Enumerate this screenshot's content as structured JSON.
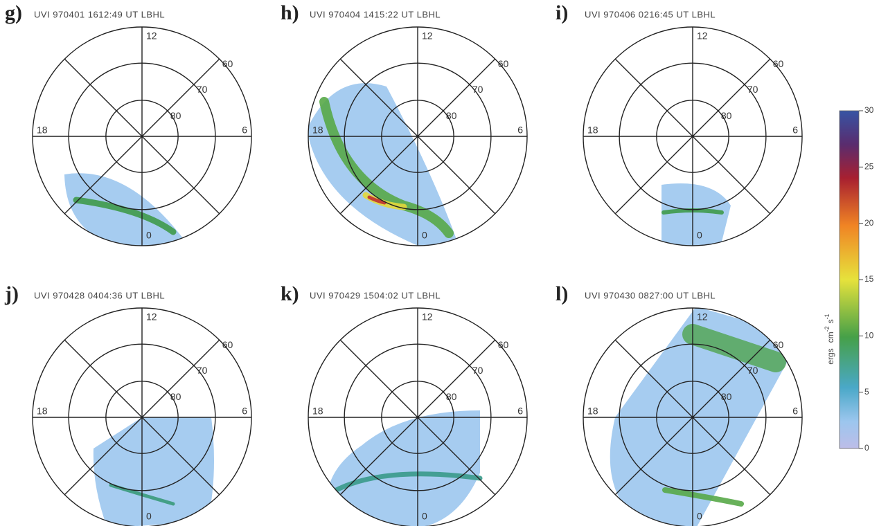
{
  "panels": [
    {
      "label": "g)",
      "title": "UVI 970401 1612:49 UT LBHL",
      "mlt": {
        "top": "12",
        "right": "6",
        "left": "18",
        "bottom": "0"
      },
      "rings": [
        "60",
        "70",
        "80"
      ]
    },
    {
      "label": "h)",
      "title": "UVI 970404 1415:22 UT LBHL",
      "mlt": {
        "top": "12",
        "right": "6",
        "left": "18",
        "bottom": "0"
      },
      "rings": [
        "60",
        "70",
        "80"
      ]
    },
    {
      "label": "i)",
      "title": "UVI 970406 0216:45 UT LBHL",
      "mlt": {
        "top": "12",
        "right": "6",
        "left": "18",
        "bottom": "0"
      },
      "rings": [
        "60",
        "70",
        "80"
      ]
    },
    {
      "label": "j)",
      "title": "UVI 970428 0404:36 UT LBHL",
      "mlt": {
        "top": "12",
        "right": "6",
        "left": "18",
        "bottom": "0"
      },
      "rings": [
        "60",
        "70",
        "80"
      ]
    },
    {
      "label": "k)",
      "title": "UVI 970429 1504:02 UT LBHL",
      "mlt": {
        "top": "12",
        "right": "6",
        "left": "18",
        "bottom": "0"
      },
      "rings": [
        "60",
        "70",
        "80"
      ]
    },
    {
      "label": "l)",
      "title": "UVI 970430 0827:00 UT LBHL",
      "mlt": {
        "top": "12",
        "right": "6",
        "left": "18",
        "bottom": "0"
      },
      "rings": [
        "60",
        "70",
        "80"
      ]
    }
  ],
  "colorbar": {
    "ticks": [
      "0",
      "5",
      "10",
      "15",
      "20",
      "25",
      "30"
    ],
    "label": {
      "unit": "ergs",
      "area": "cm",
      "area_exp": "-2",
      "time": "s",
      "time_exp": "-1"
    }
  }
}
